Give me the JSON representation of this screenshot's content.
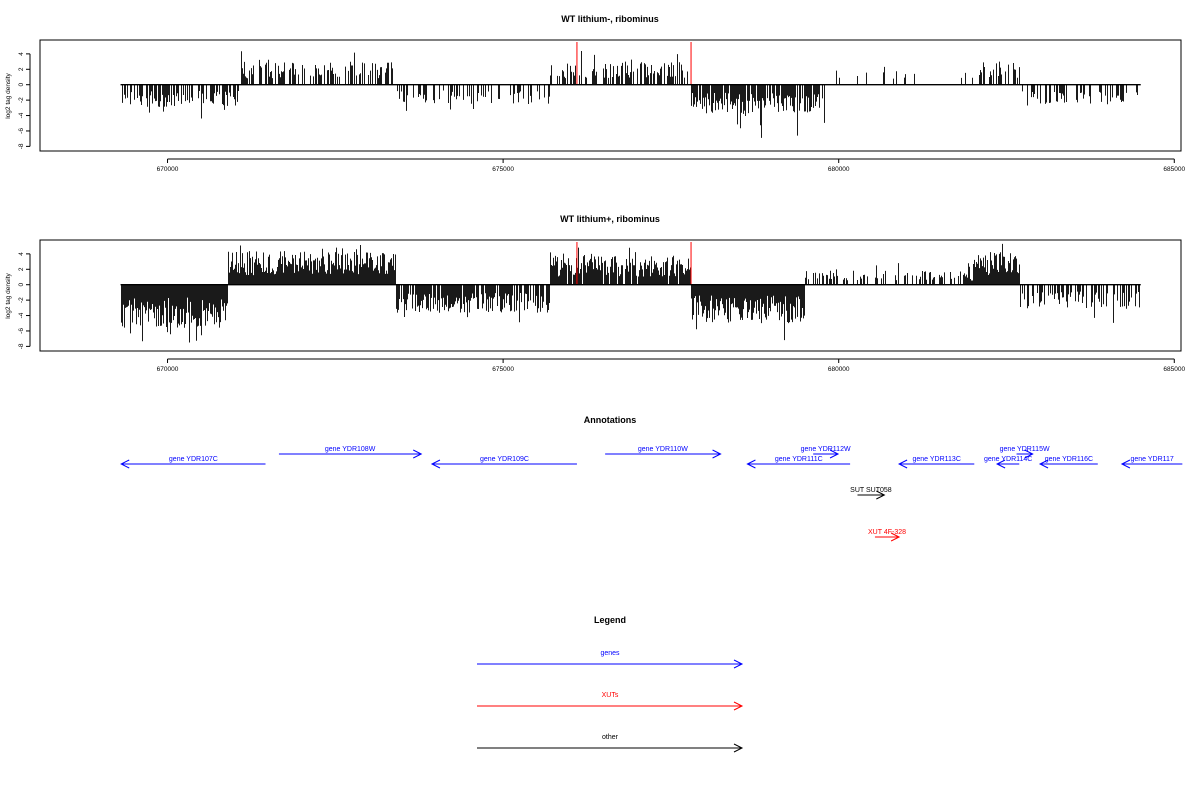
{
  "colors": {
    "axis": "#000000",
    "bars": "#000000",
    "marker": "#ff0000",
    "genes": "#0000ff",
    "xuts": "#ff0000",
    "other": "#000000"
  },
  "chart_data": [
    {
      "type": "bar",
      "title": "WT lithium-, ribominus",
      "ylabel": "log2 tag density",
      "xlim": [
        668100,
        685100
      ],
      "ylim": [
        -8.6,
        5.8
      ],
      "xticks": [
        670000,
        675000,
        680000,
        685000
      ],
      "yticks": [
        -8,
        -6,
        -4,
        -2,
        0,
        2,
        4
      ],
      "data_range": [
        669300,
        684500
      ],
      "baseline": 0,
      "markers": [
        676100,
        677800
      ],
      "density_segments": [
        {
          "start": 669300,
          "end": 671100,
          "sign": -1,
          "density": 0.65,
          "typical": 2.3,
          "max": 4.5
        },
        {
          "start": 671100,
          "end": 673400,
          "sign": 1,
          "density": 0.5,
          "typical": 2.4,
          "max": 5.0
        },
        {
          "start": 673400,
          "end": 675700,
          "sign": -1,
          "density": 0.3,
          "typical": 2.0,
          "max": 3.8
        },
        {
          "start": 675700,
          "end": 677800,
          "sign": 1,
          "density": 0.5,
          "typical": 2.4,
          "max": 4.4
        },
        {
          "start": 677800,
          "end": 679800,
          "sign": -1,
          "density": 0.8,
          "typical": 3.0,
          "max": 7.0
        },
        {
          "start": 679800,
          "end": 682100,
          "sign": 1,
          "density": 0.07,
          "typical": 1.5,
          "max": 2.5
        },
        {
          "start": 682100,
          "end": 682700,
          "sign": 1,
          "density": 0.5,
          "typical": 2.5,
          "max": 4.0
        },
        {
          "start": 682700,
          "end": 684500,
          "sign": -1,
          "density": 0.35,
          "typical": 2.2,
          "max": 4.5
        }
      ]
    },
    {
      "type": "bar",
      "title": "WT lithium+, ribominus",
      "ylabel": "log2 tag density",
      "xlim": [
        668100,
        685100
      ],
      "ylim": [
        -8.6,
        5.8
      ],
      "xticks": [
        670000,
        675000,
        680000,
        685000
      ],
      "yticks": [
        -8,
        -6,
        -4,
        -2,
        0,
        2,
        4
      ],
      "data_range": [
        669300,
        684500
      ],
      "baseline": 0,
      "markers": [
        676100,
        677800
      ],
      "density_segments": [
        {
          "start": 669300,
          "end": 670900,
          "sign": -1,
          "density": 1.0,
          "typical": 4.5,
          "max": 7.9
        },
        {
          "start": 670900,
          "end": 673400,
          "sign": 1,
          "density": 1.0,
          "typical": 3.5,
          "max": 5.3
        },
        {
          "start": 673400,
          "end": 675700,
          "sign": -1,
          "density": 0.8,
          "typical": 3.0,
          "max": 5.0
        },
        {
          "start": 675700,
          "end": 677800,
          "sign": 1,
          "density": 0.9,
          "typical": 3.0,
          "max": 5.0
        },
        {
          "start": 677800,
          "end": 679500,
          "sign": -1,
          "density": 1.0,
          "typical": 4.0,
          "max": 8.0
        },
        {
          "start": 679500,
          "end": 682000,
          "sign": 1,
          "density": 0.35,
          "typical": 1.5,
          "max": 3.0
        },
        {
          "start": 682000,
          "end": 682700,
          "sign": 1,
          "density": 1.0,
          "typical": 3.5,
          "max": 5.5
        },
        {
          "start": 682700,
          "end": 684500,
          "sign": -1,
          "density": 0.6,
          "typical": 2.5,
          "max": 5.0
        }
      ]
    }
  ],
  "annotations": {
    "title": "Annotations",
    "features": [
      {
        "label": "gene YDR107C",
        "kind": "genes",
        "strand": "-",
        "start": 669310,
        "end": 671460,
        "row": 2
      },
      {
        "label": "gene YDR108W",
        "kind": "genes",
        "strand": "+",
        "start": 671660,
        "end": 673780,
        "row": 1
      },
      {
        "label": "gene YDR109C",
        "kind": "genes",
        "strand": "-",
        "start": 673940,
        "end": 676100,
        "row": 2
      },
      {
        "label": "gene YDR110W",
        "kind": "genes",
        "strand": "+",
        "start": 676520,
        "end": 678240,
        "row": 1
      },
      {
        "label": "gene YDR111C",
        "kind": "genes",
        "strand": "-",
        "start": 678640,
        "end": 680170,
        "row": 2
      },
      {
        "label": "gene YDR112W",
        "kind": "genes",
        "strand": "+",
        "start": 679620,
        "end": 679990,
        "row": 1
      },
      {
        "label": "gene YDR113C",
        "kind": "genes",
        "strand": "-",
        "start": 680900,
        "end": 682020,
        "row": 2
      },
      {
        "label": "gene YDR114C",
        "kind": "genes",
        "strand": "-",
        "start": 682360,
        "end": 682690,
        "row": 2
      },
      {
        "label": "gene YDR115W",
        "kind": "genes",
        "strand": "+",
        "start": 682650,
        "end": 682890,
        "row": 1
      },
      {
        "label": "gene YDR116C",
        "kind": "genes",
        "strand": "-",
        "start": 683000,
        "end": 683860,
        "row": 2
      },
      {
        "label": "gene YDR117",
        "kind": "genes",
        "strand": "-",
        "start": 684220,
        "end": 685120,
        "row": 2
      },
      {
        "label": "SUT SUT058",
        "kind": "other",
        "strand": "+",
        "start": 680280,
        "end": 680680,
        "row": 3
      },
      {
        "label": "XUT 4F-328",
        "kind": "xuts",
        "strand": "+",
        "start": 680540,
        "end": 680900,
        "row": 4
      }
    ]
  },
  "legend": {
    "title": "Legend",
    "items": [
      {
        "label": "genes",
        "kind": "genes"
      },
      {
        "label": "XUTs",
        "kind": "xuts"
      },
      {
        "label": "other",
        "kind": "other"
      }
    ]
  }
}
